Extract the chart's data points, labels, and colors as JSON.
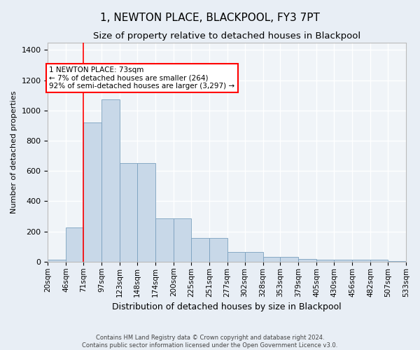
{
  "title": "1, NEWTON PLACE, BLACKPOOL, FY3 7PT",
  "subtitle": "Size of property relative to detached houses in Blackpool",
  "xlabel": "Distribution of detached houses by size in Blackpool",
  "ylabel": "Number of detached properties",
  "footer_line1": "Contains HM Land Registry data © Crown copyright and database right 2024.",
  "footer_line2": "Contains public sector information licensed under the Open Government Licence v3.0.",
  "bar_edges": [
    20,
    46,
    71,
    97,
    123,
    148,
    174,
    200,
    225,
    251,
    277,
    302,
    328,
    353,
    379,
    405,
    430,
    456,
    482,
    507,
    533
  ],
  "bar_heights": [
    15,
    225,
    920,
    1075,
    650,
    650,
    285,
    285,
    155,
    155,
    65,
    65,
    30,
    30,
    20,
    15,
    12,
    12,
    12,
    5,
    0
  ],
  "bar_color": "#c8d8e8",
  "bar_edge_color": "#7aa0be",
  "vline_x": 71,
  "vline_color": "red",
  "annotation_text": "1 NEWTON PLACE: 73sqm\n← 7% of detached houses are smaller (264)\n92% of semi-detached houses are larger (3,297) →",
  "annotation_box_color": "white",
  "annotation_box_edge": "red",
  "ylim": [
    0,
    1450
  ],
  "yticks": [
    0,
    200,
    400,
    600,
    800,
    1000,
    1200,
    1400
  ],
  "background_color": "#e8eef5",
  "plot_background": "#f0f4f8",
  "grid_color": "white",
  "title_fontsize": 11,
  "subtitle_fontsize": 9.5,
  "xlabel_fontsize": 9,
  "ylabel_fontsize": 8,
  "tick_label_fontsize": 7.5
}
